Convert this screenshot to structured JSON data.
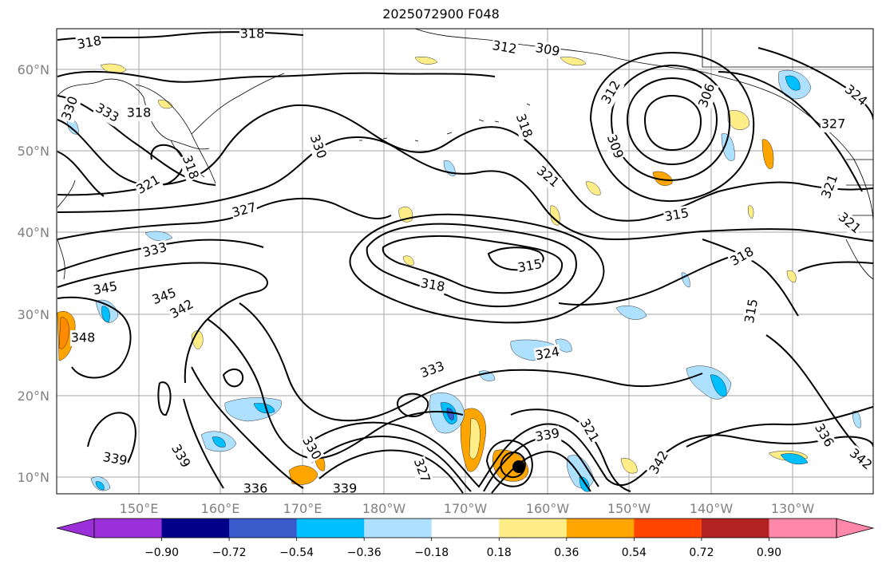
{
  "title": "2025072900 F048",
  "map": {
    "type": "contour-map",
    "lat_labels": [
      "60°N",
      "50°N",
      "40°N",
      "30°N",
      "20°N",
      "10°N"
    ],
    "lon_labels": [
      "150°E",
      "160°E",
      "170°E",
      "180°W",
      "170°W",
      "160°W",
      "150°W",
      "140°W",
      "130°W"
    ],
    "grid": true,
    "contour_labels": [
      "318",
      "318",
      "312",
      "309",
      "330",
      "333",
      "318",
      "330",
      "318",
      "318",
      "321",
      "321",
      "306",
      "309",
      "312",
      "324",
      "327",
      "315",
      "321",
      "327",
      "333",
      "315",
      "318",
      "318",
      "345",
      "345",
      "342",
      "315",
      "348",
      "333",
      "324",
      "321",
      "339",
      "336",
      "339",
      "339",
      "330",
      "342",
      "336",
      "339",
      "342",
      "327",
      "321"
    ]
  },
  "colorbar": {
    "ticks": [
      "−0.90",
      "−0.72",
      "−0.54",
      "−0.36",
      "−0.18",
      "0.18",
      "0.36",
      "0.54",
      "0.72",
      "0.90"
    ],
    "colors": [
      "#9b30d9",
      "#00008b",
      "#3a5bcc",
      "#00bfff",
      "#aee0ff",
      "#ffffff",
      "#ffee88",
      "#ffa500",
      "#ff4500",
      "#b22222",
      "#ff88aa"
    ],
    "extend": "both"
  }
}
